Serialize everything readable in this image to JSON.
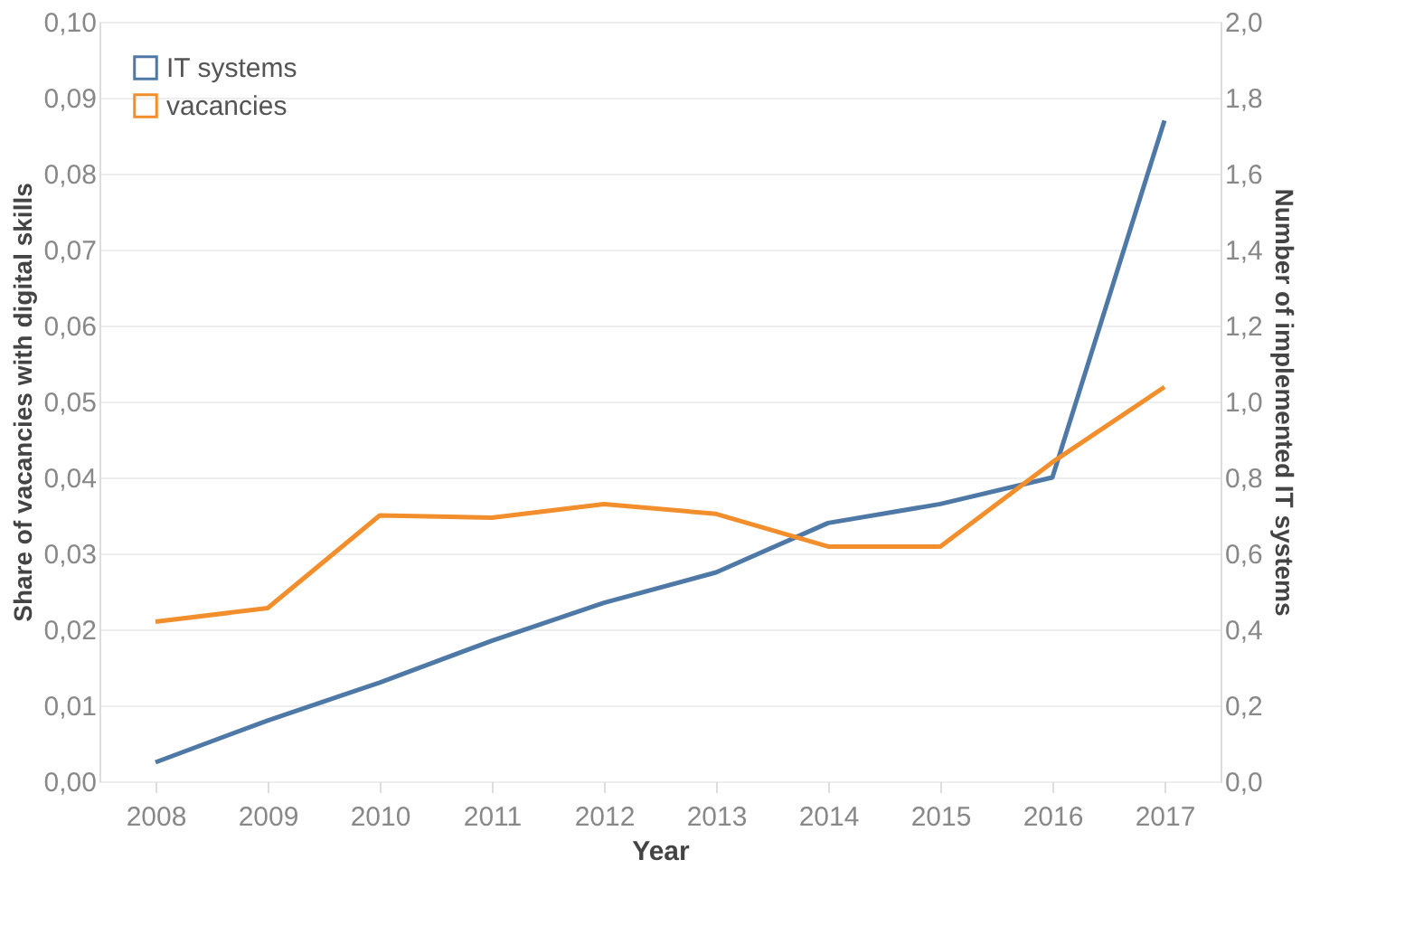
{
  "chart_data": {
    "type": "line",
    "xlabel": "Year",
    "ylabel": "Share of vacancies with digital skills",
    "y2label": "Number of implemented IT systems",
    "categories": [
      "2008",
      "2009",
      "2010",
      "2011",
      "2012",
      "2013",
      "2014",
      "2015",
      "2016",
      "2017"
    ],
    "series": [
      {
        "name": "IT systems",
        "color": "#4e79a7",
        "axis": "y2",
        "values": [
          0.05,
          0.16,
          0.26,
          0.37,
          0.47,
          0.55,
          0.68,
          0.73,
          0.8,
          1.74
        ]
      },
      {
        "name": "vacancies",
        "color": "#f28e2b",
        "values": [
          0.021,
          0.0228,
          0.035,
          0.0347,
          0.0365,
          0.0352,
          0.0309,
          0.0309,
          0.042,
          0.0519
        ]
      }
    ],
    "ylim": [
      0,
      0.1
    ],
    "yticks": [
      {
        "value": 0,
        "label": "0,00"
      },
      {
        "value": 0.01,
        "label": "0,01"
      },
      {
        "value": 0.02,
        "label": "0,02"
      },
      {
        "value": 0.03,
        "label": "0,03"
      },
      {
        "value": 0.04,
        "label": "0,04"
      },
      {
        "value": 0.05,
        "label": "0,05"
      },
      {
        "value": 0.06,
        "label": "0,06"
      },
      {
        "value": 0.07,
        "label": "0,07"
      },
      {
        "value": 0.08,
        "label": "0,08"
      },
      {
        "value": 0.09,
        "label": "0,09"
      },
      {
        "value": 0.1,
        "label": "0,10"
      }
    ],
    "y2lim": [
      0,
      2
    ],
    "y2ticks": [
      {
        "value": 0,
        "label": "0,0"
      },
      {
        "value": 0.2,
        "label": "0,2"
      },
      {
        "value": 0.4,
        "label": "0,4"
      },
      {
        "value": 0.6,
        "label": "0,6"
      },
      {
        "value": 0.8,
        "label": "0,8"
      },
      {
        "value": 1,
        "label": "1,0"
      },
      {
        "value": 1.2,
        "label": "1,2"
      },
      {
        "value": 1.4,
        "label": "1,4"
      },
      {
        "value": 1.6,
        "label": "1,6"
      },
      {
        "value": 1.8,
        "label": "1,8"
      },
      {
        "value": 2,
        "label": "2,0"
      }
    ],
    "grid": "y",
    "legend": "top left",
    "marker": "none",
    "line_style": "solid"
  }
}
